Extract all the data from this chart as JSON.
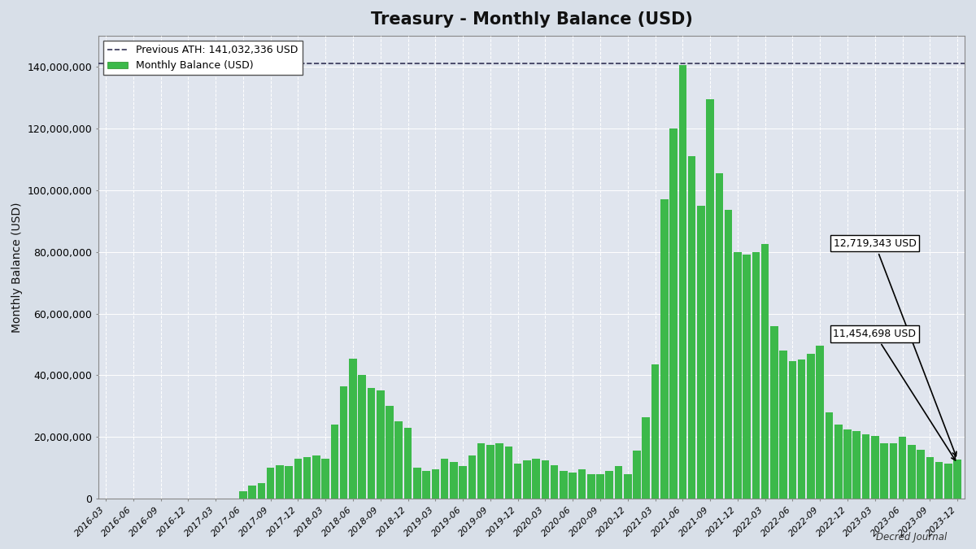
{
  "title": "Treasury - Monthly Balance (USD)",
  "ylabel": "Monthly Balance (USD)",
  "ath_value": 141032336,
  "ath_label": "Previous ATH: 141,032,336 USD",
  "bar_color": "#3cb94a",
  "fig_facecolor": "#d8dfe8",
  "ax_facecolor": "#e0e5ee",
  "annotation1_value": 12719343,
  "annotation1_label": "12,719,343 USD",
  "annotation2_value": 11454698,
  "annotation2_label": "11,454,698 USD",
  "watermark": "Decred Journal",
  "ylim": [
    0,
    150000000
  ],
  "bar_values_dict": {
    "2016-03": 0,
    "2016-04": 0,
    "2016-05": 0,
    "2016-06": 0,
    "2016-07": 0,
    "2016-08": 0,
    "2016-09": 0,
    "2016-10": 0,
    "2016-11": 0,
    "2016-12": 0,
    "2017-01": 0,
    "2017-02": 0,
    "2017-03": 0,
    "2017-04": 0,
    "2017-05": 0,
    "2017-06": 2500000,
    "2017-07": 4200000,
    "2017-08": 5000000,
    "2017-09": 10000000,
    "2017-10": 11000000,
    "2017-11": 10500000,
    "2017-12": 13000000,
    "2018-01": 13500000,
    "2018-02": 14000000,
    "2018-03": 13000000,
    "2018-04": 24000000,
    "2018-05": 36500000,
    "2018-06": 45500000,
    "2018-07": 40000000,
    "2018-08": 36000000,
    "2018-09": 35000000,
    "2018-10": 30000000,
    "2018-11": 25000000,
    "2018-12": 23000000,
    "2019-01": 10000000,
    "2019-02": 9000000,
    "2019-03": 9500000,
    "2019-04": 13000000,
    "2019-05": 12000000,
    "2019-06": 10500000,
    "2019-07": 14000000,
    "2019-08": 18000000,
    "2019-09": 17500000,
    "2019-10": 18000000,
    "2019-11": 17000000,
    "2019-12": 11500000,
    "2020-01": 12500000,
    "2020-02": 13000000,
    "2020-03": 12500000,
    "2020-04": 11000000,
    "2020-05": 9000000,
    "2020-06": 8500000,
    "2020-07": 9500000,
    "2020-08": 8000000,
    "2020-09": 8000000,
    "2020-10": 9000000,
    "2020-11": 10500000,
    "2020-12": 8000000,
    "2021-01": 15500000,
    "2021-02": 26500000,
    "2021-03": 43500000,
    "2021-04": 97000000,
    "2021-05": 120000000,
    "2021-06": 140500000,
    "2021-07": 111000000,
    "2021-08": 95000000,
    "2021-09": 129500000,
    "2021-10": 105500000,
    "2021-11": 93500000,
    "2021-12": 80000000,
    "2022-01": 79000000,
    "2022-02": 80000000,
    "2022-03": 82500000,
    "2022-04": 56000000,
    "2022-05": 48000000,
    "2022-06": 44500000,
    "2022-07": 45000000,
    "2022-08": 47000000,
    "2022-09": 49500000,
    "2022-10": 28000000,
    "2022-11": 24000000,
    "2022-12": 22500000,
    "2023-01": 22000000,
    "2023-02": 21000000,
    "2023-03": 20500000,
    "2023-04": 18000000,
    "2023-05": 18000000,
    "2023-06": 20000000,
    "2023-07": 17500000,
    "2023-08": 16000000,
    "2023-09": 13500000,
    "2023-10": 12000000,
    "2023-11": 11454698,
    "2023-12": 12719343
  },
  "tick_months": [
    "03",
    "06",
    "09",
    "12"
  ]
}
